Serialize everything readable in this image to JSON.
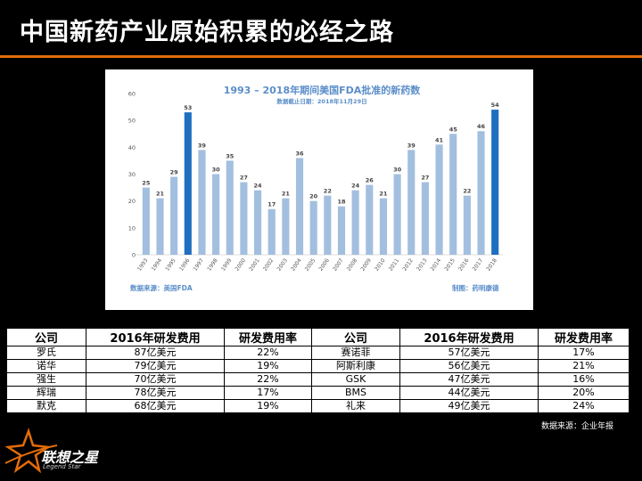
{
  "slide": {
    "title": "中国新药产业原始积累的必经之路",
    "source_note": "数据来源：企业年报",
    "logo": {
      "name": "联想之星",
      "sub": "Legend Star"
    }
  },
  "colors": {
    "accent": "#e36c0a",
    "bar": "#a3bfdf",
    "bar_highlight": "#1f6fc0",
    "title_blue": "#5b8ec9"
  },
  "chart_data": {
    "type": "bar",
    "title": "1993 – 2018年期间美国FDA批准的新药数",
    "subtitle": "数据截止日期：2018年11月29日",
    "source": "数据来源：美国FDA",
    "maker": "制图：药明康德",
    "categories": [
      "1993",
      "1994",
      "1995",
      "1996",
      "1997",
      "1998",
      "1999",
      "2000",
      "2001",
      "2002",
      "2003",
      "2004",
      "2005",
      "2006",
      "2007",
      "2008",
      "2009",
      "2010",
      "2011",
      "2012",
      "2013",
      "2014",
      "2015",
      "2016",
      "2017",
      "2018"
    ],
    "values": [
      25,
      21,
      29,
      53,
      39,
      30,
      35,
      27,
      24,
      17,
      21,
      36,
      20,
      22,
      18,
      24,
      26,
      21,
      30,
      39,
      27,
      41,
      45,
      22,
      46,
      54
    ],
    "highlight": [
      "1996",
      "2018"
    ],
    "ylim": [
      0,
      60
    ],
    "yticks": [
      0,
      10,
      20,
      30,
      40,
      50,
      60
    ]
  },
  "table": {
    "headers": [
      "公司",
      "2016年研发费用",
      "研发费用率",
      "公司",
      "2016年研发费用",
      "研发费用率"
    ],
    "rows": [
      [
        "罗氏",
        "87亿美元",
        "22%",
        "赛诺菲",
        "57亿美元",
        "17%"
      ],
      [
        "诺华",
        "79亿美元",
        "19%",
        "阿斯利康",
        "56亿美元",
        "21%"
      ],
      [
        "强生",
        "70亿美元",
        "22%",
        "GSK",
        "47亿美元",
        "16%"
      ],
      [
        "辉瑞",
        "78亿美元",
        "17%",
        "BMS",
        "44亿美元",
        "20%"
      ],
      [
        "默克",
        "68亿美元",
        "19%",
        "礼来",
        "49亿美元",
        "24%"
      ]
    ]
  }
}
